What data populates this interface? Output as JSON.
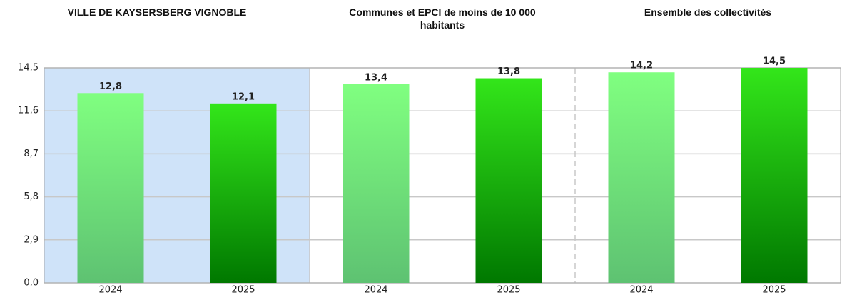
{
  "chart_data": {
    "type": "bar",
    "ylim": [
      0,
      14.5
    ],
    "yticks": [
      {
        "value": 0,
        "label": "0,0"
      },
      {
        "value": 2.9,
        "label": "2,9"
      },
      {
        "value": 5.8,
        "label": "5,8"
      },
      {
        "value": 8.7,
        "label": "8,7"
      },
      {
        "value": 11.6,
        "label": "11,6"
      },
      {
        "value": 14.5,
        "label": "14,5"
      }
    ],
    "grid": true,
    "bar_colors": [
      [
        "#80ff80",
        "#5ec272"
      ],
      [
        "#33e61a",
        "#007800"
      ]
    ],
    "highlight_color": "#cfe3f9",
    "groups": [
      {
        "title": "VILLE DE KAYSERSBERG VIGNOBLE",
        "categories": [
          "2024",
          "2025"
        ],
        "values": [
          12.8,
          12.1
        ],
        "value_labels": [
          "12,8",
          "12,1"
        ]
      },
      {
        "title": "Communes et EPCI de moins de 10 000 habitants",
        "categories": [
          "2024",
          "2025"
        ],
        "values": [
          13.4,
          13.8
        ],
        "value_labels": [
          "13,4",
          "13,8"
        ]
      },
      {
        "title": "Ensemble des collectivités",
        "categories": [
          "2024",
          "2025"
        ],
        "values": [
          14.2,
          14.5
        ],
        "value_labels": [
          "14,2",
          "14,5"
        ]
      }
    ]
  }
}
